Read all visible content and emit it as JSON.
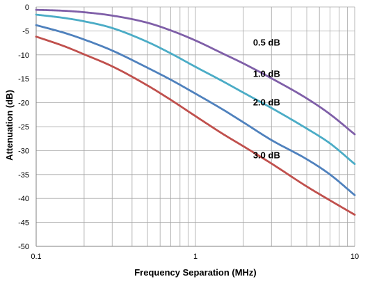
{
  "chart_data": {
    "type": "line",
    "title": "",
    "xlabel": "Frequency Separation (MHz)",
    "ylabel": "Attenuation (dB)",
    "xscale": "log",
    "xlim": [
      0.1,
      10
    ],
    "ylim": [
      -50,
      0
    ],
    "x_tick_labels": [
      "0.1",
      "1",
      "10"
    ],
    "y_tick_labels": [
      "0",
      "-5",
      "-10",
      "-15",
      "-20",
      "-25",
      "-30",
      "-35",
      "-40",
      "-45",
      "-50"
    ],
    "grid": true,
    "legend": "none",
    "series": [
      {
        "name": "0.5 dB",
        "color": "#7f5fa8",
        "x": [
          0.1,
          0.15,
          0.2,
          0.3,
          0.5,
          0.7,
          1,
          1.5,
          2,
          3,
          5,
          7,
          10
        ],
        "y": [
          -0.6,
          -0.8,
          -1.1,
          -1.8,
          -3.3,
          -4.9,
          -7.0,
          -9.8,
          -11.8,
          -14.9,
          -19.1,
          -22.4,
          -26.6
        ]
      },
      {
        "name": "1.0 dB",
        "color": "#4bacc6",
        "x": [
          0.1,
          0.15,
          0.2,
          0.3,
          0.5,
          0.7,
          1,
          1.5,
          2,
          3,
          5,
          7,
          10
        ],
        "y": [
          -1.6,
          -2.3,
          -3.0,
          -4.4,
          -7.3,
          -9.7,
          -12.5,
          -15.6,
          -17.9,
          -21.1,
          -25.4,
          -28.5,
          -32.8
        ]
      },
      {
        "name": "2.0 dB",
        "color": "#4f81bd",
        "x": [
          0.1,
          0.15,
          0.2,
          0.3,
          0.5,
          0.7,
          1,
          1.5,
          2,
          3,
          5,
          7,
          10
        ],
        "y": [
          -3.8,
          -5.4,
          -6.8,
          -9.1,
          -12.7,
          -15.2,
          -18.1,
          -21.5,
          -24.1,
          -27.8,
          -31.8,
          -35.0,
          -39.3
        ]
      },
      {
        "name": "3.0 dB",
        "color": "#c0504d",
        "x": [
          0.1,
          0.15,
          0.2,
          0.3,
          0.5,
          0.7,
          1,
          1.5,
          2,
          3,
          5,
          7,
          10
        ],
        "y": [
          -6.2,
          -8.2,
          -9.9,
          -12.4,
          -16.4,
          -19.4,
          -22.8,
          -26.6,
          -29.1,
          -32.7,
          -37.5,
          -40.4,
          -43.4
        ]
      }
    ],
    "annotations": [
      {
        "text": "0.5 dB",
        "x": 2.3,
        "y": -7.5
      },
      {
        "text": "1.0 dB",
        "x": 2.3,
        "y": -14.0
      },
      {
        "text": "2.0 dB",
        "x": 2.3,
        "y": -20.0
      },
      {
        "text": "3.0 dB",
        "x": 2.3,
        "y": -31.0
      }
    ]
  }
}
